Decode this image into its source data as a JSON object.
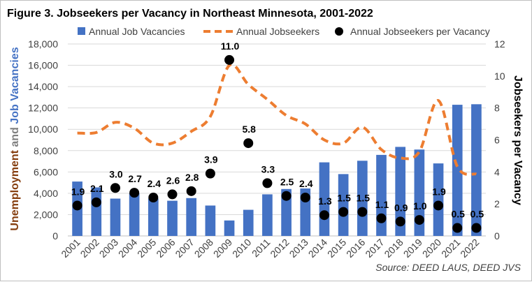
{
  "chart_data": {
    "type": "bar",
    "title": "Figure 3. Jobseekers per Vacancy in Northeast Minnesota, 2001-2022",
    "categories": [
      "2001",
      "2002",
      "2003",
      "2004",
      "2005",
      "2006",
      "2007",
      "2008",
      "2009",
      "2010",
      "2011",
      "2012",
      "2013",
      "2014",
      "2015",
      "2016",
      "2017",
      "2018",
      "2019",
      "2020",
      "2021",
      "2022"
    ],
    "series": [
      {
        "name": "Annual Job Vacancies",
        "kind": "bar",
        "axis": "left",
        "color": "#4472c4",
        "values": [
          5100,
          4550,
          3500,
          4000,
          3500,
          3300,
          3550,
          2850,
          1450,
          2450,
          3900,
          4400,
          4450,
          6900,
          5800,
          7050,
          7600,
          8350,
          8100,
          6800,
          12300,
          12350
        ]
      },
      {
        "name": "Annual Jobseekers",
        "kind": "line",
        "axis": "left",
        "color": "#ed7d31",
        "values": [
          9650,
          9700,
          10650,
          10100,
          8700,
          8700,
          9800,
          11200,
          16000,
          14200,
          12800,
          11300,
          10500,
          9000,
          8700,
          10200,
          8100,
          7300,
          7900,
          12700,
          6500,
          5800
        ]
      },
      {
        "name": "Annual Jobseekers per Vacancy",
        "kind": "scatter",
        "axis": "right",
        "color": "#000000",
        "values": [
          1.9,
          2.1,
          3.0,
          2.7,
          2.4,
          2.6,
          2.8,
          3.9,
          11.0,
          5.8,
          3.3,
          2.5,
          2.4,
          1.3,
          1.5,
          1.5,
          1.1,
          0.9,
          1.0,
          1.9,
          0.5,
          0.5
        ],
        "labels": [
          "1.9",
          "2.1",
          "3.0",
          "2.7",
          "2.4",
          "2.6",
          "2.8",
          "3.9",
          "11.0",
          "5.8",
          "3.3",
          "2.5",
          "2.4",
          "1.3",
          "1.5",
          "1.5",
          "1.1",
          "0.9",
          "1.0",
          "1.9",
          "0.5",
          "0.5"
        ]
      }
    ],
    "y_left": {
      "ylim": [
        0,
        18000
      ],
      "ticks": [
        "0",
        "2,000",
        "4,000",
        "6,000",
        "8,000",
        "10,000",
        "12,000",
        "14,000",
        "16,000",
        "18,000"
      ],
      "label_parts": [
        {
          "text": "Unemployment",
          "color": "#843c0c"
        },
        {
          "text": " and ",
          "color": "#7f7f7f"
        },
        {
          "text": "Job Vacancies",
          "color": "#4472c4"
        }
      ]
    },
    "y_right": {
      "ylim": [
        0,
        12
      ],
      "ticks": [
        "0",
        "2",
        "4",
        "6",
        "8",
        "10",
        "12"
      ],
      "label": "Jobseekers per Vacancy"
    },
    "legend_position": "top",
    "grid": true,
    "source": "Source: DEED LAUS, DEED JVS"
  }
}
